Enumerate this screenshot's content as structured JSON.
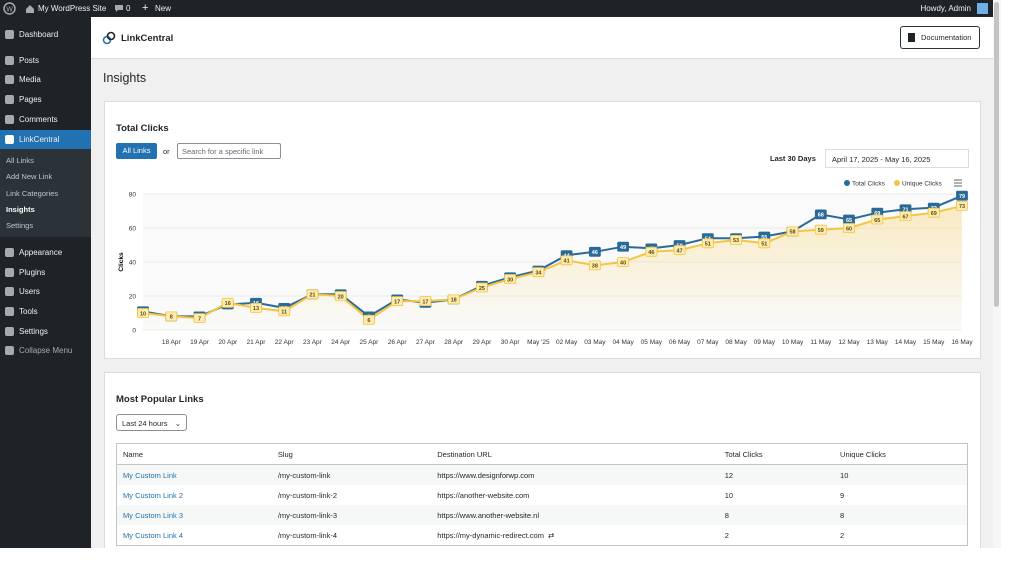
{
  "admin_bar": {
    "site": "My WordPress Site",
    "comments": "0",
    "new": "New",
    "greeting": "Howdy, Admin"
  },
  "menu": {
    "top": [
      "Dashboard",
      "Posts",
      "Media",
      "Pages",
      "Comments",
      "LinkCentral"
    ],
    "submenu": [
      "All Links",
      "Add New Link",
      "Link Categories",
      "Insights",
      "Settings"
    ],
    "bottom": [
      "Appearance",
      "Plugins",
      "Users",
      "Tools",
      "Settings",
      "Collapse Menu"
    ]
  },
  "header": {
    "brand": "LinkCentral",
    "button": "Documentation",
    "page_title": "Insights"
  },
  "clicks_card": {
    "title": "Total Clicks",
    "all_links": "All Links",
    "or": "or",
    "search_placeholder": "Search for a specific link",
    "range_label": "Last 30 Days",
    "range": "April 17, 2025 - May 16, 2025"
  },
  "chart_data": {
    "type": "line",
    "y_label": "Clicks",
    "categories": [
      null,
      "18 Apr",
      "19 Apr",
      "20 Apr",
      "21 Apr",
      "22 Apr",
      "23 Apr",
      "24 Apr",
      "25 Apr",
      "26 Apr",
      "27 Apr",
      "28 Apr",
      "29 Apr",
      "30 Apr",
      "May '25",
      "02 May",
      "03 May",
      "04 May",
      "05 May",
      "06 May",
      "07 May",
      "08 May",
      "09 May",
      "10 May",
      "11 May",
      "12 May",
      "13 May",
      "14 May",
      "15 May",
      "16 May"
    ],
    "series": [
      {
        "name": "Total Clicks",
        "color": "#2a6a99",
        "values": [
          11,
          8,
          8,
          15,
          16,
          13,
          21,
          21,
          8,
          18,
          16,
          18,
          26,
          31,
          35,
          44,
          46,
          49,
          48,
          50,
          54,
          54,
          55,
          58,
          68,
          65,
          69,
          71,
          72,
          79
        ]
      },
      {
        "name": "Unique Clicks",
        "color": "#f4c542",
        "values": [
          10,
          8,
          7,
          16,
          13,
          11,
          21,
          20,
          6,
          17,
          17,
          18,
          25,
          30,
          34,
          41,
          38,
          40,
          46,
          47,
          51,
          53,
          51,
          58,
          59,
          60,
          65,
          67,
          69,
          73
        ]
      }
    ],
    "ylim": [
      0,
      80
    ],
    "yticks": [
      0,
      20,
      40,
      60,
      80
    ],
    "grid": true
  },
  "popular": {
    "title": "Most Popular Links",
    "filter": "Last 24 hours",
    "columns": [
      "Name",
      "Slug",
      "Destination URL",
      "Total Clicks",
      "Unique Clicks"
    ],
    "rows": [
      [
        "My Custom Link",
        "/my-custom-link",
        "https://www.designforwp.com",
        12,
        10
      ],
      [
        "My Custom Link 2",
        "/my-custom-link-2",
        "https://another-website.com",
        10,
        9
      ],
      [
        "My Custom Link 3",
        "/my-custom-link-3",
        "https://www.another-website.nl",
        8,
        8
      ],
      [
        "My Custom Link 4",
        "/my-custom-link-4",
        "https://my-dynamic-redirect.com",
        2,
        2
      ]
    ]
  }
}
